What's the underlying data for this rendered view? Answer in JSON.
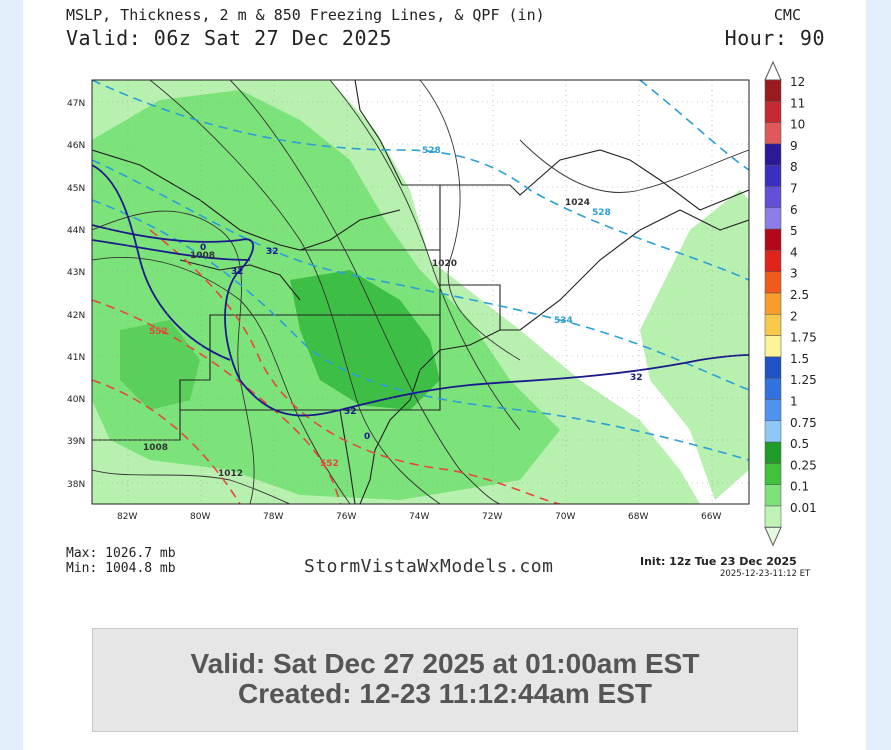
{
  "header": {
    "title": "MSLP, Thickness, 2 m & 850 Freezing Lines, & QPF (in)",
    "model": "CMC",
    "valid": "Valid: 06z Sat 27 Dec 2025",
    "hour": "Hour: 90"
  },
  "map": {
    "lat_labels": [
      "47N",
      "46N",
      "45N",
      "44N",
      "43N",
      "42N",
      "41N",
      "40N",
      "39N",
      "38N"
    ],
    "lon_labels": [
      "82W",
      "80W",
      "78W",
      "76W",
      "74W",
      "72W",
      "70W",
      "68W",
      "66W"
    ],
    "contour_labels": {
      "isobars": [
        "1024",
        "1020",
        "1008",
        "1012",
        "1008"
      ],
      "thickness": [
        "528",
        "528",
        "534",
        "552",
        "552"
      ],
      "freezing": [
        "32",
        "32",
        "32",
        "32",
        "0",
        "0"
      ]
    },
    "colors": {
      "qpf_light": "#b8f0b0",
      "qpf_medium": "#7ce27a",
      "qpf_heavy": "#3cbf44",
      "thickness_cold": "#2a9fd8",
      "thickness_warm": "#e8473c",
      "freezing_line": "#1a1a8a",
      "isobar": "#333333"
    }
  },
  "legend": {
    "entries": [
      {
        "label": "12",
        "color": "#9b1a1f"
      },
      {
        "label": "11",
        "color": "#c62a30"
      },
      {
        "label": "10",
        "color": "#e0595a"
      },
      {
        "label": "9",
        "color": "#2b1a96"
      },
      {
        "label": "8",
        "color": "#3a2fbf"
      },
      {
        "label": "7",
        "color": "#6350d8"
      },
      {
        "label": "6",
        "color": "#8c7ee8"
      },
      {
        "label": "5",
        "color": "#b3071a"
      },
      {
        "label": "4",
        "color": "#e0241a"
      },
      {
        "label": "3",
        "color": "#f25a1c"
      },
      {
        "label": "2.5",
        "color": "#f79b2c"
      },
      {
        "label": "2",
        "color": "#f7c84a"
      },
      {
        "label": "1.75",
        "color": "#fbf29a"
      },
      {
        "label": "1.5",
        "color": "#1f52c4"
      },
      {
        "label": "1.25",
        "color": "#2f72e0"
      },
      {
        "label": "1",
        "color": "#4e93ee"
      },
      {
        "label": "0.75",
        "color": "#8ec8f6"
      },
      {
        "label": "0.5",
        "color": "#1f9b2a"
      },
      {
        "label": "0.25",
        "color": "#42c13c"
      },
      {
        "label": "0.1",
        "color": "#7ee27a"
      },
      {
        "label": "0.01",
        "color": "#bff3b6"
      }
    ]
  },
  "stats": {
    "max": "Max: 1026.7 mb",
    "min": "Min: 1004.8 mb"
  },
  "site": "StormVistaWxModels.com",
  "init": "Init: 12z Tue 23 Dec 2025",
  "init_time": "2025-12-23-11:12 ET",
  "footer": {
    "valid": "Valid: Sat Dec 27 2025 at 01:00am EST",
    "created": "Created: 12-23 11:12:44am EST"
  }
}
